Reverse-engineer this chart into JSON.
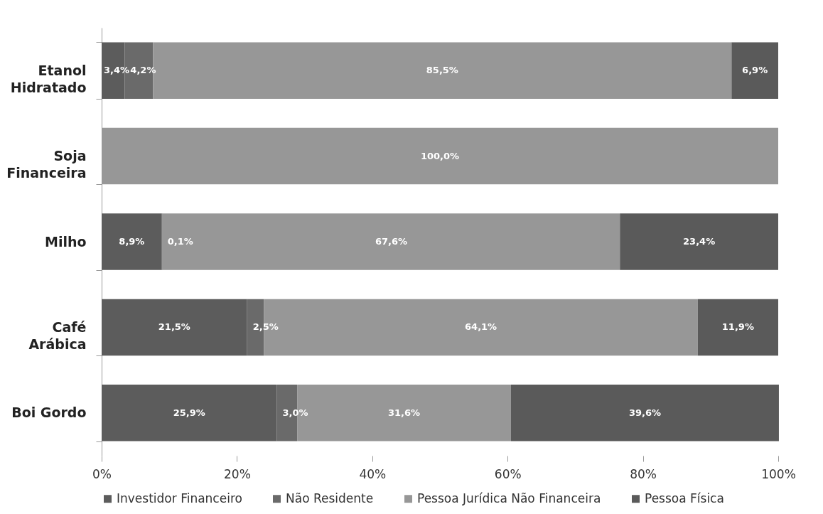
{
  "chart_data": {
    "type": "bar",
    "orientation": "horizontal",
    "stacked": true,
    "categories": [
      "Etanol Hidratado",
      "Soja Financeira",
      "Milho",
      "Café Arábica",
      "Boi Gordo"
    ],
    "series": [
      {
        "name": "Investidor Financeiro",
        "color": "#5c5c5c",
        "values": [
          3.4,
          null,
          8.9,
          21.5,
          25.9
        ],
        "value_labels": [
          "3,4%",
          null,
          "8,9%",
          "21,5%",
          "25,9%"
        ]
      },
      {
        "name": "Não Residente",
        "color": "#6a6a6a",
        "values": [
          4.2,
          null,
          0.1,
          2.5,
          3.0
        ],
        "value_labels": [
          "4,2%",
          null,
          "0,1%",
          "2,5%",
          "3,0%"
        ]
      },
      {
        "name": "Pessoa Jurídica Não Financeira",
        "color": "#979797",
        "values": [
          85.5,
          100.0,
          67.6,
          64.1,
          31.6
        ],
        "value_labels": [
          "85,5%",
          "100,0%",
          "67,6%",
          "64,1%",
          "31,6%"
        ]
      },
      {
        "name": "Pessoa Física",
        "color": "#5a5a5a",
        "values": [
          6.9,
          null,
          23.4,
          11.9,
          39.6
        ],
        "value_labels": [
          "6,9%",
          null,
          "23,4%",
          "11,9%",
          "39,6%"
        ]
      }
    ],
    "xlim": [
      0,
      100
    ],
    "xticks": [
      {
        "value": 0,
        "label": "0%"
      },
      {
        "value": 20,
        "label": "20%"
      },
      {
        "value": 40,
        "label": "40%"
      },
      {
        "value": 60,
        "label": "60%"
      },
      {
        "value": 80,
        "label": "80%"
      },
      {
        "value": 100,
        "label": "100%"
      }
    ],
    "grid": false,
    "legend": "bottom"
  }
}
